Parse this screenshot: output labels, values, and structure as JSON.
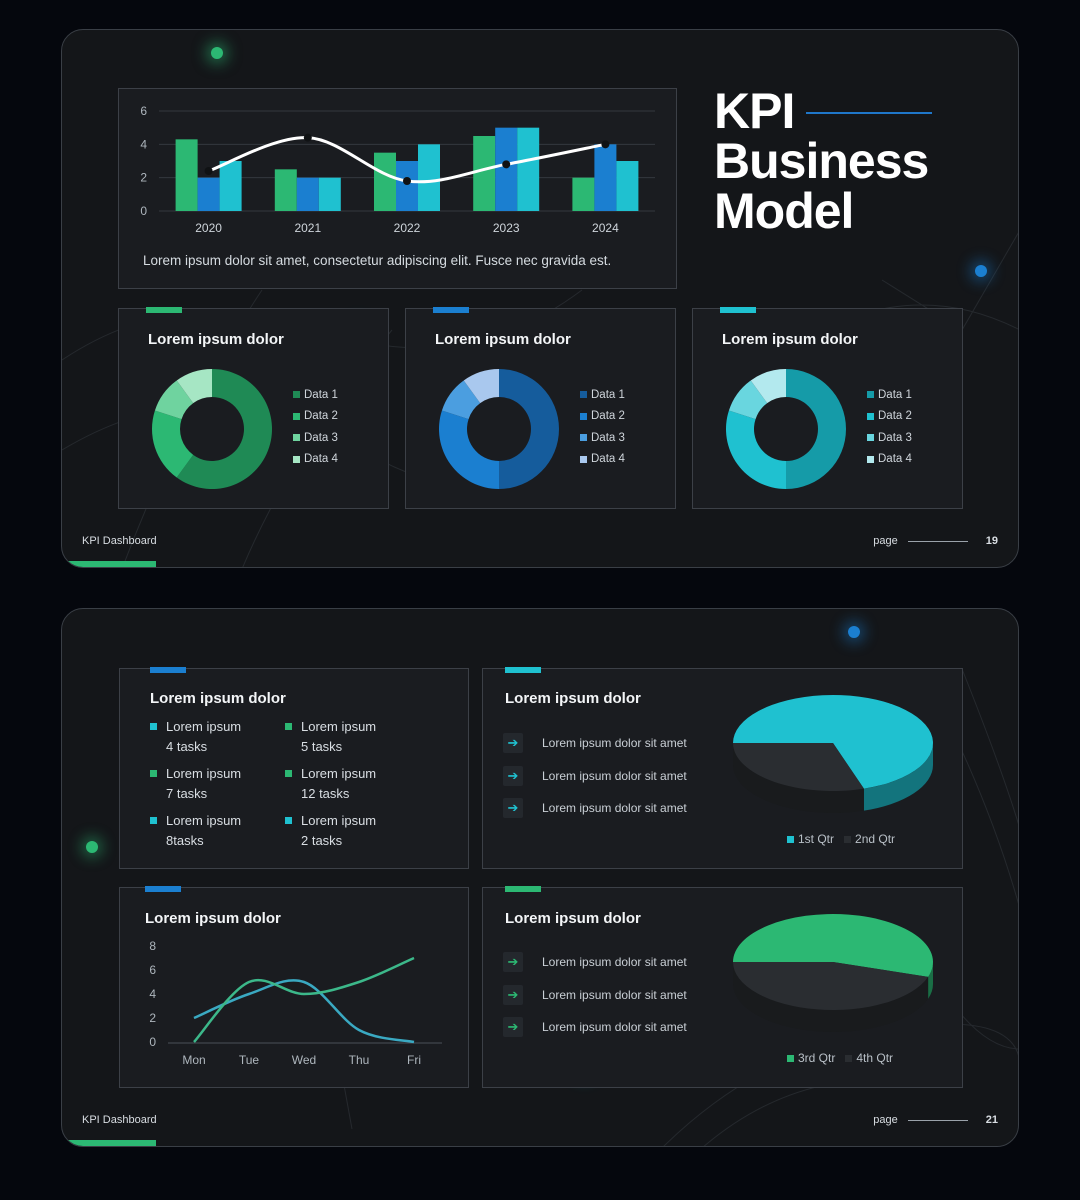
{
  "colors": {
    "green": "#2cb873",
    "blue": "#1b7fd0",
    "cyan": "#1fc1d0",
    "dark": "#2a2d31"
  },
  "slide1": {
    "title_lines": [
      "KPI",
      "Business",
      "Model"
    ],
    "footer_label": "KPI Dashboard",
    "page_label": "page",
    "page_number": "19",
    "bar_panel": {
      "caption": "Lorem ipsum dolor sit amet, consectetur adipiscing elit. Fusce nec gravida est."
    },
    "donuts": [
      {
        "title": "Lorem ipsum dolor",
        "legend": [
          "Data 1",
          "Data 2",
          "Data 3",
          "Data 4"
        ]
      },
      {
        "title": "Lorem ipsum dolor",
        "legend": [
          "Data 1",
          "Data 2",
          "Data 3",
          "Data 4"
        ]
      },
      {
        "title": "Lorem ipsum dolor",
        "legend": [
          "Data 1",
          "Data 2",
          "Data 3",
          "Data 4"
        ]
      }
    ]
  },
  "slide2": {
    "footer_label": "KPI Dashboard",
    "page_label": "page",
    "page_number": "21",
    "tasks_panel": {
      "title": "Lorem ipsum dolor",
      "items": [
        {
          "label": "Lorem ipsum",
          "count": "4 tasks",
          "color": "cyan"
        },
        {
          "label": "Lorem ipsum",
          "count": "5 tasks",
          "color": "green"
        },
        {
          "label": "Lorem ipsum",
          "count": "7 tasks",
          "color": "green"
        },
        {
          "label": "Lorem ipsum",
          "count": "12 tasks",
          "color": "green"
        },
        {
          "label": "Lorem ipsum",
          "count": "8tasks",
          "color": "cyan"
        },
        {
          "label": "Lorem ipsum",
          "count": "2 tasks",
          "color": "cyan"
        }
      ]
    },
    "line_panel": {
      "title": "Lorem ipsum dolor"
    },
    "pie_panel_top": {
      "title": "Lorem ipsum dolor",
      "items": [
        "Lorem ipsum dolor sit amet",
        "Lorem ipsum dolor sit amet",
        "Lorem ipsum dolor sit amet"
      ],
      "legend": [
        "1st Qtr",
        "2nd Qtr"
      ]
    },
    "pie_panel_bottom": {
      "title": "Lorem ipsum dolor",
      "items": [
        "Lorem ipsum dolor sit amet",
        "Lorem ipsum dolor sit amet",
        "Lorem ipsum dolor sit amet"
      ],
      "legend": [
        "3rd Qtr",
        "4th Qtr"
      ]
    }
  },
  "chart_data": [
    {
      "type": "bar",
      "categories": [
        "2020",
        "2021",
        "2022",
        "2023",
        "2024"
      ],
      "series": [
        {
          "values": [
            4.3,
            2.5,
            3.5,
            4.5,
            2.0
          ],
          "color": "#2cb873"
        },
        {
          "values": [
            2.0,
            2.0,
            3.0,
            5.0,
            4.0
          ],
          "color": "#1b7fd0"
        },
        {
          "values": [
            3.0,
            2.0,
            4.0,
            5.0,
            3.0
          ],
          "color": "#1fc1d0"
        }
      ],
      "overlay_line": {
        "values": [
          2.4,
          4.4,
          1.8,
          2.8,
          4.0
        ],
        "color": "#ffffff"
      },
      "ylim": [
        0,
        6
      ],
      "yticks": [
        0,
        2,
        4,
        6
      ],
      "grid": true
    },
    {
      "type": "pie",
      "donut": true,
      "categories": [
        "Data 1",
        "Data 2",
        "Data 3",
        "Data 4"
      ],
      "values": [
        60,
        20,
        10,
        10
      ],
      "colors": [
        "#1f8a55",
        "#2cb873",
        "#6fd39f",
        "#a6e6c4"
      ]
    },
    {
      "type": "pie",
      "donut": true,
      "categories": [
        "Data 1",
        "Data 2",
        "Data 3",
        "Data 4"
      ],
      "values": [
        50,
        30,
        10,
        10
      ],
      "colors": [
        "#155c9c",
        "#1b7fd0",
        "#4b9ee0",
        "#a9c8ee"
      ]
    },
    {
      "type": "pie",
      "donut": true,
      "categories": [
        "Data 1",
        "Data 2",
        "Data 3",
        "Data 4"
      ],
      "values": [
        50,
        30,
        10,
        10
      ],
      "colors": [
        "#159ba8",
        "#1fc1d0",
        "#69d6df",
        "#b3e9ee"
      ]
    },
    {
      "type": "line",
      "categories": [
        "Mon",
        "Tue",
        "Wed",
        "Thu",
        "Fri"
      ],
      "series": [
        {
          "values": [
            2,
            4,
            5,
            1,
            0
          ],
          "color": "#3aa9c2"
        },
        {
          "values": [
            0,
            5,
            4,
            5,
            7
          ],
          "color": "#3cb88a"
        }
      ],
      "ylim": [
        0,
        8
      ],
      "yticks": [
        0,
        2,
        4,
        6,
        8
      ]
    },
    {
      "type": "pie",
      "categories": [
        "1st Qtr",
        "2nd Qtr"
      ],
      "values": [
        70,
        30
      ],
      "colors": [
        "#1fc1d0",
        "#2a2d31"
      ]
    },
    {
      "type": "pie",
      "categories": [
        "3rd Qtr",
        "4th Qtr"
      ],
      "values": [
        55,
        45
      ],
      "colors": [
        "#2cb873",
        "#2a2d31"
      ]
    }
  ]
}
